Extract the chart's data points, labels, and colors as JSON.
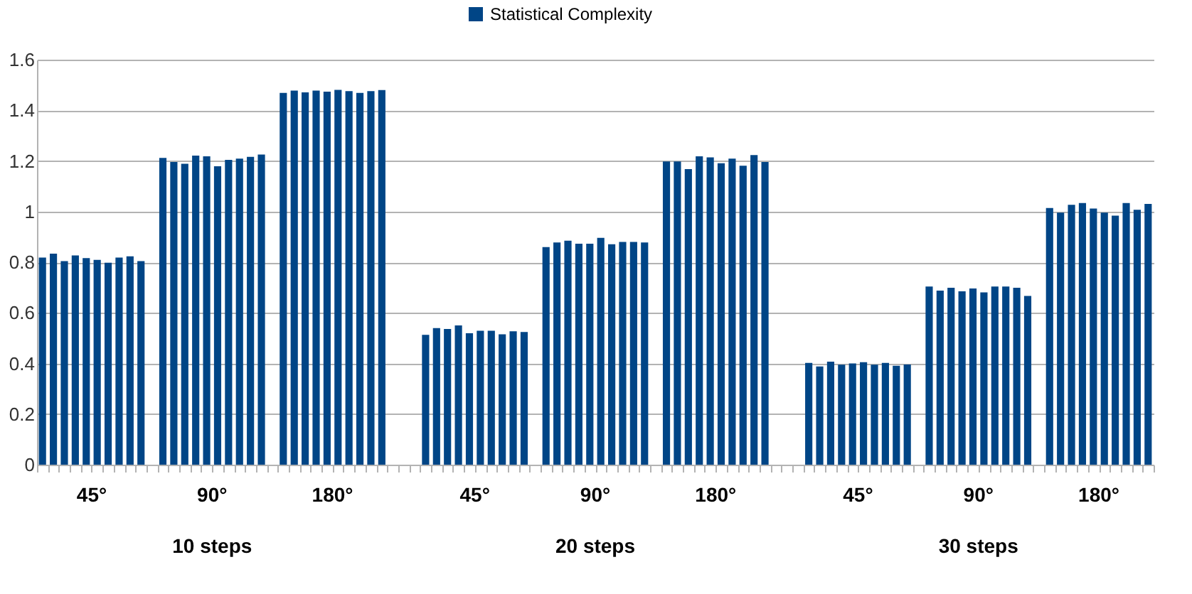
{
  "chart_data": {
    "type": "bar",
    "categories": [
      null,
      null,
      null,
      null,
      null,
      null,
      null,
      null,
      null,
      null,
      null,
      null,
      null,
      null,
      null,
      null,
      null,
      null,
      null,
      null,
      null,
      null,
      null,
      null,
      null,
      null,
      null,
      null,
      null,
      null,
      null,
      null,
      null,
      null,
      null,
      null,
      null,
      null,
      null,
      null,
      null,
      null,
      null,
      null,
      null,
      null,
      null,
      null,
      null,
      null,
      null,
      null,
      null,
      null,
      null,
      null,
      null,
      null,
      null,
      null,
      null,
      null,
      null,
      null,
      null,
      null,
      null,
      null,
      null,
      null,
      null,
      null,
      null,
      null,
      null,
      null,
      null,
      null,
      null,
      null,
      null,
      null,
      null,
      null,
      null,
      null,
      null,
      null,
      null,
      null,
      null,
      null,
      null,
      null,
      null,
      null,
      null,
      null,
      null,
      null,
      null,
      null
    ],
    "series": [
      {
        "name": "Statistical Complexity",
        "color": "#004586",
        "values": [
          0.818,
          0.834,
          0.804,
          0.827,
          0.816,
          0.809,
          0.798,
          0.818,
          0.823,
          0.804,
          null,
          1.212,
          1.196,
          1.189,
          1.221,
          1.218,
          1.179,
          1.204,
          1.209,
          1.216,
          1.225,
          null,
          1.469,
          1.478,
          1.471,
          1.478,
          1.474,
          1.481,
          1.476,
          1.469,
          1.476,
          1.48,
          null,
          null,
          null,
          0.513,
          0.54,
          0.536,
          0.55,
          0.519,
          0.529,
          0.529,
          0.515,
          0.527,
          0.524,
          null,
          0.86,
          0.878,
          0.885,
          0.873,
          0.873,
          0.896,
          0.871,
          0.88,
          0.88,
          0.878,
          null,
          1.198,
          1.198,
          1.168,
          1.218,
          1.214,
          1.191,
          1.209,
          1.181,
          1.223,
          1.196,
          null,
          null,
          null,
          0.402,
          0.388,
          0.407,
          0.395,
          0.4,
          0.405,
          0.395,
          0.402,
          0.391,
          0.396,
          null,
          0.704,
          0.688,
          0.699,
          0.685,
          0.696,
          0.681,
          0.704,
          0.704,
          0.699,
          0.667,
          null,
          1.014,
          0.996,
          1.027,
          1.034,
          1.012,
          0.996,
          0.984,
          1.034,
          1.007,
          1.03
        ]
      }
    ],
    "ylim": [
      0,
      1.6
    ],
    "yticks": [
      0,
      0.2,
      0.4,
      0.6,
      0.8,
      1,
      1.2,
      1.4,
      1.6
    ],
    "grid": "y",
    "legend": "top",
    "tick_labels": "y",
    "annotations": [
      "45°",
      "90°",
      "180°",
      "45°",
      "90°",
      "180°",
      "45°",
      "90°",
      "180°",
      "10 steps",
      "20 steps",
      "30 steps"
    ]
  }
}
